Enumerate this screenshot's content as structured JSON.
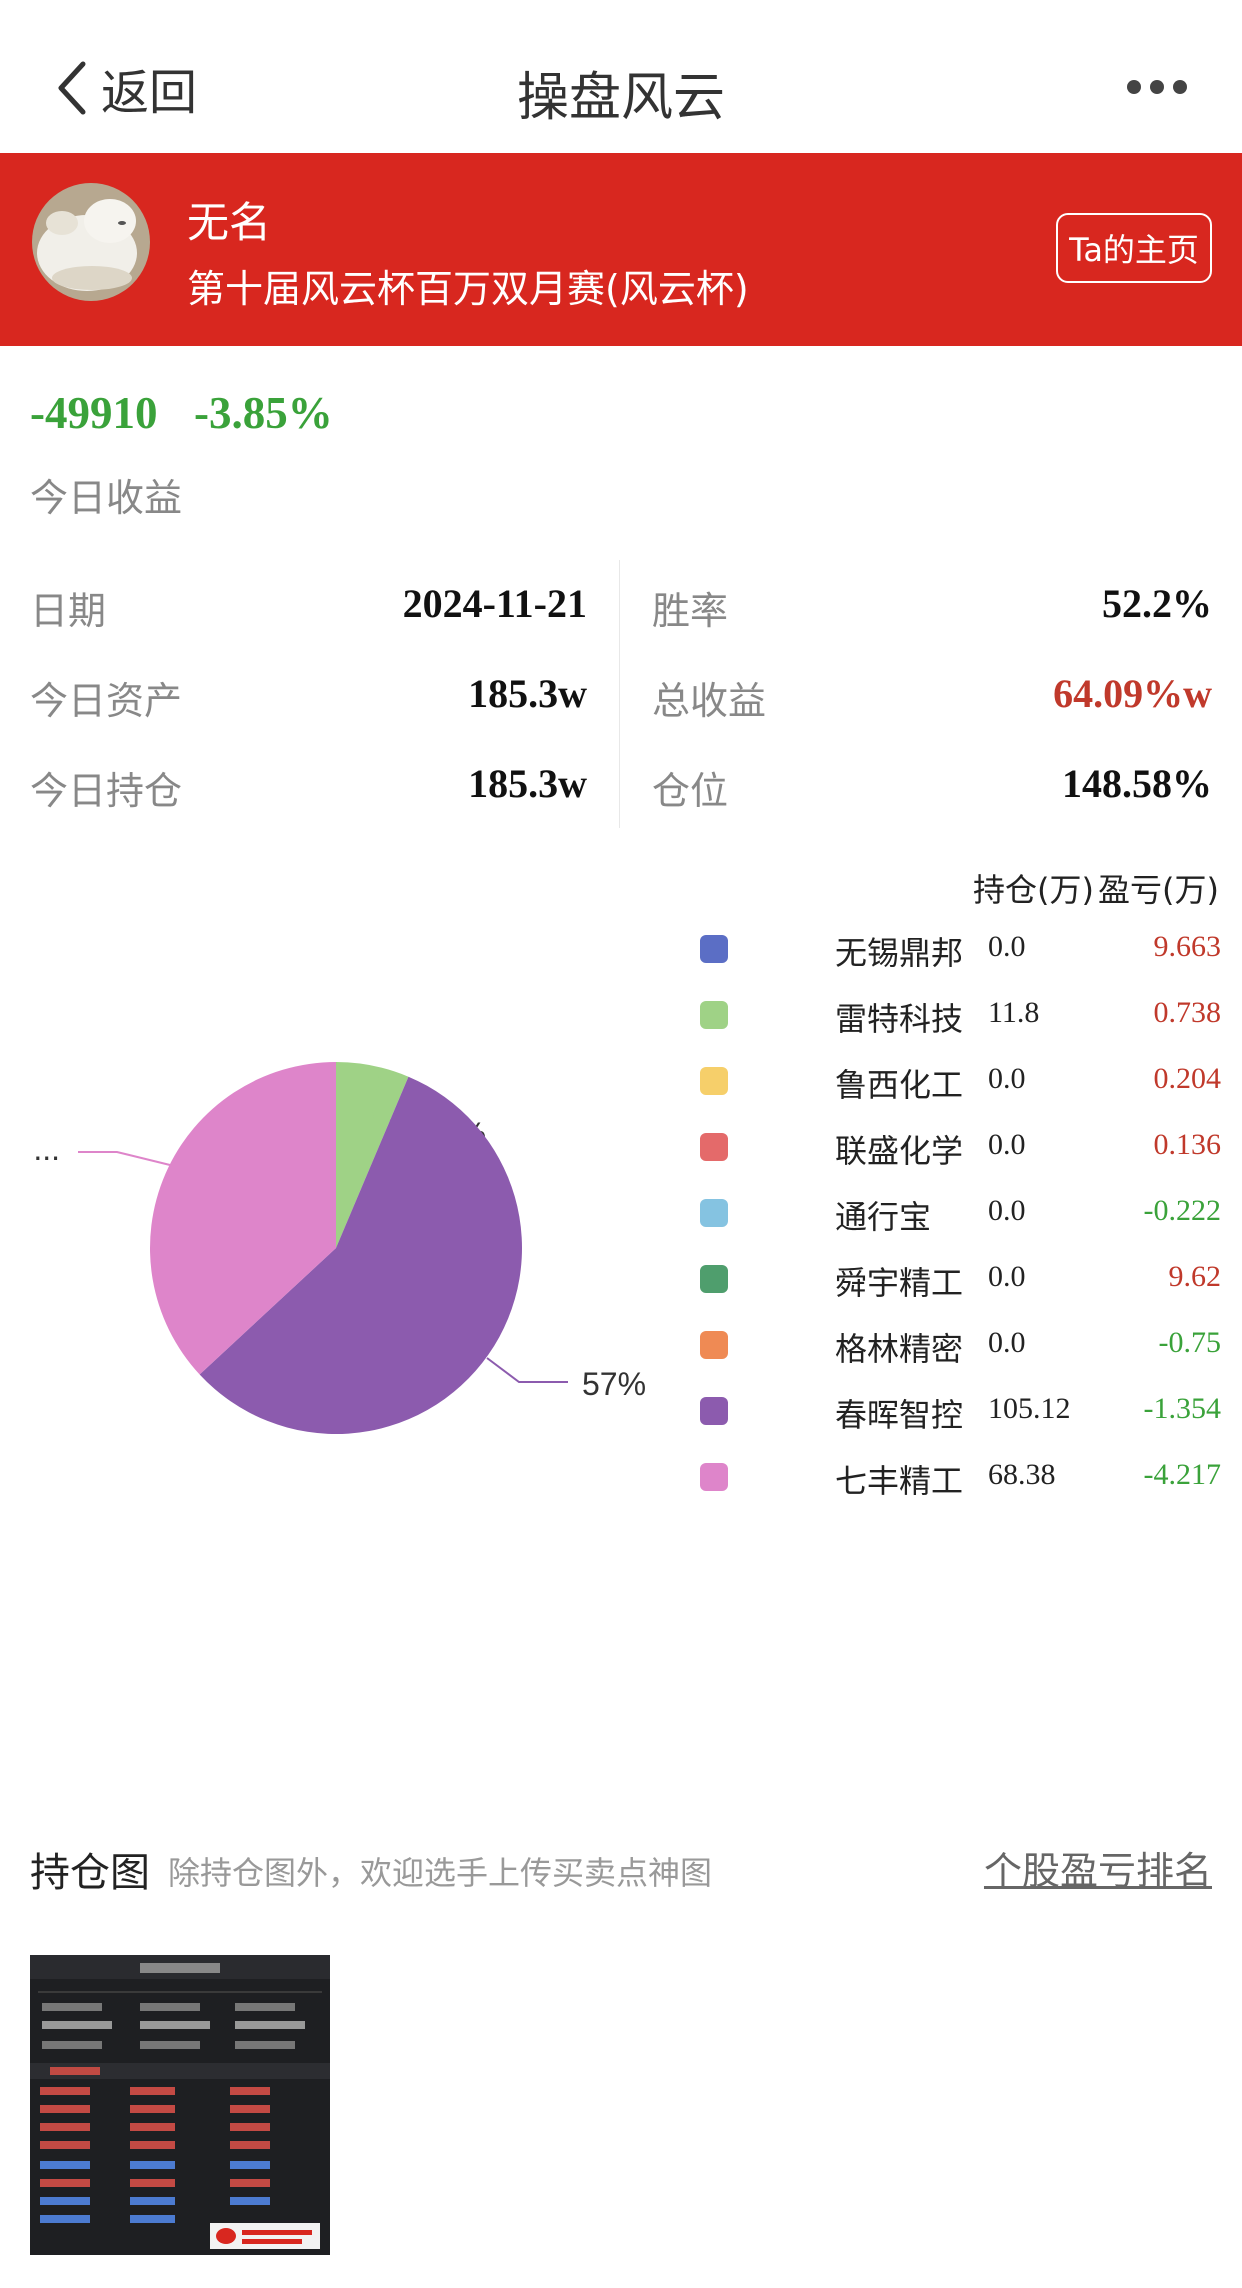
{
  "nav": {
    "back_label": "返回",
    "title": "操盘风云"
  },
  "banner": {
    "user_name": "无名",
    "contest": "第十届风云杯百万双月赛(风云杯)",
    "home_button": "Ta的主页"
  },
  "today": {
    "profit_value": "-49910",
    "profit_percent": "-3.85%",
    "label": "今日收益"
  },
  "stats": {
    "date_label": "日期",
    "date_value": "2024-11-21",
    "assets_label": "今日资产",
    "assets_value": "185.3w",
    "holding_label": "今日持仓",
    "holding_value": "185.3w",
    "winrate_label": "胜率",
    "winrate_value": "52.2%",
    "total_label": "总收益",
    "total_value": "64.09%w",
    "position_label": "仓位",
    "position_value": "148.58%"
  },
  "legend": {
    "header_position": "持仓(万)",
    "header_pl": "盈亏(万)",
    "items": [
      {
        "name": "无锡鼎邦",
        "position": "0.0",
        "pl": "9.663",
        "color": "#5b6ec5",
        "pl_color": "#c0392b"
      },
      {
        "name": "雷特科技",
        "position": "11.8",
        "pl": "0.738",
        "color": "#9fd286",
        "pl_color": "#c0392b"
      },
      {
        "name": "鲁西化工",
        "position": "0.0",
        "pl": "0.204",
        "color": "#f6cf6a",
        "pl_color": "#c0392b"
      },
      {
        "name": "联盛化学",
        "position": "0.0",
        "pl": "0.136",
        "color": "#e46a6a",
        "pl_color": "#c0392b"
      },
      {
        "name": "通行宝",
        "position": "0.0",
        "pl": "-0.222",
        "color": "#85c3e1",
        "pl_color": "#3aa23a"
      },
      {
        "name": "舜宇精工",
        "position": "0.0",
        "pl": "9.62",
        "color": "#4f9e6d",
        "pl_color": "#c0392b"
      },
      {
        "name": "格林精密",
        "position": "0.0",
        "pl": "-0.75",
        "color": "#ef8a54",
        "pl_color": "#3aa23a"
      },
      {
        "name": "春晖智控",
        "position": "105.12",
        "pl": "-1.354",
        "color": "#8c5bae",
        "pl_color": "#3aa23a"
      },
      {
        "name": "七丰精工",
        "position": "68.38",
        "pl": "-4.217",
        "color": "#de85ca",
        "pl_color": "#3aa23a"
      }
    ]
  },
  "chart_data": {
    "type": "pie",
    "title": "",
    "slices": [
      {
        "name": "雷特科技",
        "value": 11.8,
        "color": "#9fd286",
        "label": "6%"
      },
      {
        "name": "春晖智控",
        "value": 105.12,
        "color": "#8c5bae",
        "label": "57%"
      },
      {
        "name": "七丰精工",
        "value": 68.38,
        "color": "#de85ca",
        "label": "..."
      }
    ]
  },
  "chart_section": {
    "title": "持仓图",
    "subtitle": "除持仓图外，欢迎选手上传买卖点神图",
    "rank_link": "个股盈亏排名"
  }
}
